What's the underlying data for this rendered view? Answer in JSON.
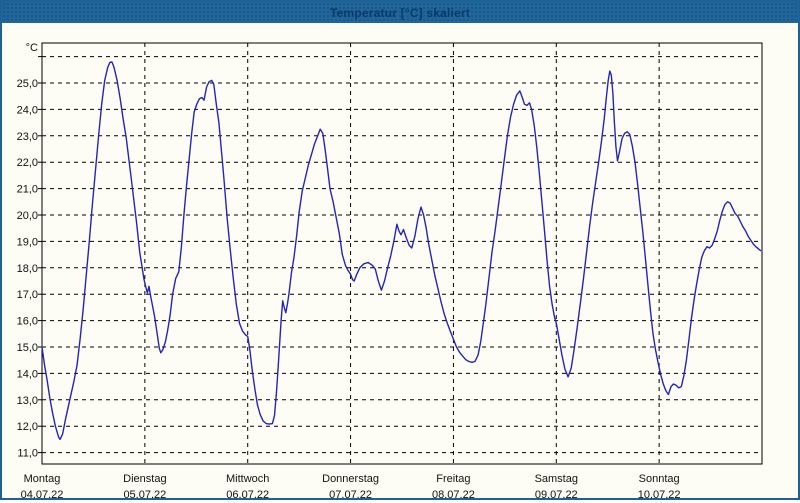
{
  "window": {
    "title": "Temperatur [°C] skaliert"
  },
  "chart_data": {
    "type": "line",
    "title": "Temperatur [°C] skaliert",
    "grid": "dashed",
    "legend_position": "none",
    "line_color": "#2424b8",
    "plot_bg_color": "#fdfdf6",
    "frame_color": "#000000",
    "y_axis": {
      "unit_label": "°C",
      "ylim": [
        10.6,
        26.5
      ],
      "gridline_step": 1.0,
      "gridlines": [
        11,
        12,
        13,
        14,
        15,
        16,
        17,
        18,
        19,
        20,
        21,
        22,
        23,
        24,
        25,
        26
      ],
      "ticks": [
        {
          "value": 25,
          "label": "25,0"
        },
        {
          "value": 24,
          "label": "24,0"
        },
        {
          "value": 23,
          "label": "23,0"
        },
        {
          "value": 22,
          "label": "22,0"
        },
        {
          "value": 21,
          "label": "21,0"
        },
        {
          "value": 20,
          "label": "20,0"
        },
        {
          "value": 19,
          "label": "19,0"
        },
        {
          "value": 18,
          "label": "18,0"
        },
        {
          "value": 17,
          "label": "17,0"
        },
        {
          "value": 16,
          "label": "16,0"
        },
        {
          "value": 15,
          "label": "15,0"
        },
        {
          "value": 14,
          "label": "14,0"
        },
        {
          "value": 13,
          "label": "13,0"
        },
        {
          "value": 12,
          "label": "12,0"
        },
        {
          "value": 11,
          "label": "11,0"
        }
      ]
    },
    "x_axis": {
      "unit": "days",
      "xlim_days": [
        0,
        7
      ],
      "tick_days": [
        {
          "name": "Montag",
          "date": "04.07.22"
        },
        {
          "name": "Dienstag",
          "date": "05.07.22"
        },
        {
          "name": "Mittwoch",
          "date": "06.07.22"
        },
        {
          "name": "Donnerstag",
          "date": "07.07.22"
        },
        {
          "name": "Freitag",
          "date": "08.07.22"
        },
        {
          "name": "Samstag",
          "date": "09.07.22"
        },
        {
          "name": "Sonntag",
          "date": "10.07.22"
        }
      ]
    },
    "series": [
      {
        "name": "Temperatur [°C]",
        "points": [
          [
            0.0,
            15.0
          ],
          [
            0.025,
            14.3
          ],
          [
            0.05,
            13.75
          ],
          [
            0.075,
            13.1
          ],
          [
            0.1,
            12.55
          ],
          [
            0.13,
            12.0
          ],
          [
            0.16,
            11.6
          ],
          [
            0.175,
            11.5
          ],
          [
            0.2,
            11.7
          ],
          [
            0.23,
            12.3
          ],
          [
            0.27,
            13.0
          ],
          [
            0.31,
            13.7
          ],
          [
            0.34,
            14.3
          ],
          [
            0.37,
            15.3
          ],
          [
            0.4,
            16.4
          ],
          [
            0.43,
            17.7
          ],
          [
            0.46,
            19.0
          ],
          [
            0.49,
            20.4
          ],
          [
            0.52,
            21.7
          ],
          [
            0.55,
            23.0
          ],
          [
            0.58,
            24.2
          ],
          [
            0.61,
            25.1
          ],
          [
            0.64,
            25.6
          ],
          [
            0.66,
            25.78
          ],
          [
            0.68,
            25.8
          ],
          [
            0.7,
            25.6
          ],
          [
            0.73,
            25.1
          ],
          [
            0.76,
            24.4
          ],
          [
            0.79,
            23.6
          ],
          [
            0.82,
            22.9
          ],
          [
            0.87,
            21.3
          ],
          [
            0.92,
            19.7
          ],
          [
            0.95,
            18.6
          ],
          [
            0.97,
            18.1
          ],
          [
            0.99,
            17.6
          ],
          [
            1.01,
            17.25
          ],
          [
            1.025,
            17.05
          ],
          [
            1.04,
            17.3
          ],
          [
            1.055,
            16.95
          ],
          [
            1.075,
            16.55
          ],
          [
            1.095,
            16.15
          ],
          [
            1.12,
            15.5
          ],
          [
            1.14,
            14.95
          ],
          [
            1.155,
            14.78
          ],
          [
            1.175,
            14.9
          ],
          [
            1.2,
            15.2
          ],
          [
            1.22,
            15.6
          ],
          [
            1.245,
            16.2
          ],
          [
            1.27,
            17.0
          ],
          [
            1.3,
            17.6
          ],
          [
            1.33,
            17.85
          ],
          [
            1.355,
            18.8
          ],
          [
            1.38,
            20.0
          ],
          [
            1.405,
            21.1
          ],
          [
            1.43,
            22.1
          ],
          [
            1.455,
            23.1
          ],
          [
            1.48,
            23.9
          ],
          [
            1.505,
            24.2
          ],
          [
            1.53,
            24.4
          ],
          [
            1.555,
            24.45
          ],
          [
            1.575,
            24.35
          ],
          [
            1.6,
            24.85
          ],
          [
            1.625,
            25.05
          ],
          [
            1.65,
            25.1
          ],
          [
            1.67,
            24.95
          ],
          [
            1.695,
            24.2
          ],
          [
            1.72,
            23.5
          ],
          [
            1.745,
            22.4
          ],
          [
            1.77,
            21.3
          ],
          [
            1.8,
            19.9
          ],
          [
            1.83,
            18.7
          ],
          [
            1.86,
            17.6
          ],
          [
            1.89,
            16.6
          ],
          [
            1.92,
            15.9
          ],
          [
            1.95,
            15.6
          ],
          [
            1.98,
            15.45
          ],
          [
            2.0,
            15.4
          ],
          [
            2.02,
            14.9
          ],
          [
            2.045,
            14.1
          ],
          [
            2.07,
            13.4
          ],
          [
            2.095,
            12.8
          ],
          [
            2.12,
            12.45
          ],
          [
            2.15,
            12.2
          ],
          [
            2.18,
            12.1
          ],
          [
            2.21,
            12.08
          ],
          [
            2.24,
            12.1
          ],
          [
            2.26,
            12.4
          ],
          [
            2.28,
            13.3
          ],
          [
            2.295,
            14.2
          ],
          [
            2.31,
            15.1
          ],
          [
            2.325,
            16.0
          ],
          [
            2.34,
            16.75
          ],
          [
            2.355,
            16.5
          ],
          [
            2.37,
            16.3
          ],
          [
            2.385,
            16.6
          ],
          [
            2.4,
            17.0
          ],
          [
            2.425,
            17.8
          ],
          [
            2.45,
            18.4
          ],
          [
            2.475,
            19.2
          ],
          [
            2.5,
            20.1
          ],
          [
            2.53,
            20.9
          ],
          [
            2.56,
            21.4
          ],
          [
            2.59,
            21.9
          ],
          [
            2.62,
            22.3
          ],
          [
            2.65,
            22.7
          ],
          [
            2.68,
            23.0
          ],
          [
            2.705,
            23.25
          ],
          [
            2.73,
            23.1
          ],
          [
            2.755,
            22.4
          ],
          [
            2.775,
            21.8
          ],
          [
            2.8,
            21.0
          ],
          [
            2.83,
            20.5
          ],
          [
            2.86,
            19.9
          ],
          [
            2.89,
            19.3
          ],
          [
            2.92,
            18.5
          ],
          [
            2.95,
            18.1
          ],
          [
            2.975,
            17.9
          ],
          [
            3.0,
            17.75
          ],
          [
            3.02,
            17.55
          ],
          [
            3.035,
            17.5
          ],
          [
            3.06,
            17.75
          ],
          [
            3.09,
            18.0
          ],
          [
            3.13,
            18.15
          ],
          [
            3.17,
            18.2
          ],
          [
            3.21,
            18.1
          ],
          [
            3.24,
            17.95
          ],
          [
            3.27,
            17.5
          ],
          [
            3.3,
            17.15
          ],
          [
            3.33,
            17.5
          ],
          [
            3.36,
            18.0
          ],
          [
            3.39,
            18.45
          ],
          [
            3.42,
            19.0
          ],
          [
            3.45,
            19.65
          ],
          [
            3.47,
            19.4
          ],
          [
            3.49,
            19.25
          ],
          [
            3.515,
            19.45
          ],
          [
            3.54,
            19.15
          ],
          [
            3.57,
            18.85
          ],
          [
            3.595,
            18.75
          ],
          [
            3.625,
            19.2
          ],
          [
            3.655,
            19.85
          ],
          [
            3.685,
            20.3
          ],
          [
            3.71,
            20.0
          ],
          [
            3.735,
            19.5
          ],
          [
            3.76,
            18.9
          ],
          [
            3.79,
            18.3
          ],
          [
            3.82,
            17.7
          ],
          [
            3.85,
            17.2
          ],
          [
            3.88,
            16.7
          ],
          [
            3.91,
            16.25
          ],
          [
            3.94,
            15.9
          ],
          [
            3.97,
            15.6
          ],
          [
            4.0,
            15.3
          ],
          [
            4.03,
            15.0
          ],
          [
            4.06,
            14.8
          ],
          [
            4.09,
            14.65
          ],
          [
            4.12,
            14.52
          ],
          [
            4.15,
            14.45
          ],
          [
            4.18,
            14.42
          ],
          [
            4.21,
            14.45
          ],
          [
            4.24,
            14.7
          ],
          [
            4.265,
            15.2
          ],
          [
            4.29,
            15.9
          ],
          [
            4.315,
            16.6
          ],
          [
            4.345,
            17.6
          ],
          [
            4.375,
            18.6
          ],
          [
            4.405,
            19.4
          ],
          [
            4.435,
            20.3
          ],
          [
            4.465,
            21.2
          ],
          [
            4.495,
            22.1
          ],
          [
            4.525,
            23.0
          ],
          [
            4.555,
            23.7
          ],
          [
            4.585,
            24.2
          ],
          [
            4.615,
            24.55
          ],
          [
            4.645,
            24.7
          ],
          [
            4.67,
            24.45
          ],
          [
            4.69,
            24.2
          ],
          [
            4.715,
            24.15
          ],
          [
            4.74,
            24.25
          ],
          [
            4.76,
            24.0
          ],
          [
            4.785,
            23.4
          ],
          [
            4.81,
            22.6
          ],
          [
            4.835,
            21.6
          ],
          [
            4.86,
            20.5
          ],
          [
            4.885,
            19.4
          ],
          [
            4.91,
            18.3
          ],
          [
            4.935,
            17.3
          ],
          [
            4.96,
            16.6
          ],
          [
            4.985,
            16.1
          ],
          [
            5.0,
            15.9
          ],
          [
            5.025,
            15.35
          ],
          [
            5.055,
            14.7
          ],
          [
            5.085,
            14.15
          ],
          [
            5.115,
            13.87
          ],
          [
            5.145,
            14.2
          ],
          [
            5.175,
            14.95
          ],
          [
            5.205,
            15.8
          ],
          [
            5.235,
            16.7
          ],
          [
            5.265,
            17.6
          ],
          [
            5.295,
            18.6
          ],
          [
            5.325,
            19.6
          ],
          [
            5.355,
            20.5
          ],
          [
            5.385,
            21.3
          ],
          [
            5.415,
            22.1
          ],
          [
            5.44,
            22.8
          ],
          [
            5.465,
            23.6
          ],
          [
            5.485,
            24.4
          ],
          [
            5.505,
            25.1
          ],
          [
            5.52,
            25.45
          ],
          [
            5.535,
            25.3
          ],
          [
            5.55,
            24.6
          ],
          [
            5.565,
            23.5
          ],
          [
            5.58,
            22.6
          ],
          [
            5.595,
            22.05
          ],
          [
            5.615,
            22.4
          ],
          [
            5.64,
            22.9
          ],
          [
            5.665,
            23.1
          ],
          [
            5.69,
            23.15
          ],
          [
            5.715,
            23.05
          ],
          [
            5.74,
            22.6
          ],
          [
            5.765,
            22.0
          ],
          [
            5.79,
            21.2
          ],
          [
            5.815,
            20.3
          ],
          [
            5.84,
            19.4
          ],
          [
            5.865,
            18.4
          ],
          [
            5.89,
            17.4
          ],
          [
            5.915,
            16.4
          ],
          [
            5.94,
            15.5
          ],
          [
            5.965,
            14.9
          ],
          [
            5.99,
            14.4
          ],
          [
            6.015,
            13.95
          ],
          [
            6.04,
            13.6
          ],
          [
            6.065,
            13.35
          ],
          [
            6.09,
            13.2
          ],
          [
            6.115,
            13.5
          ],
          [
            6.14,
            13.6
          ],
          [
            6.165,
            13.55
          ],
          [
            6.19,
            13.45
          ],
          [
            6.215,
            13.5
          ],
          [
            6.24,
            13.9
          ],
          [
            6.265,
            14.5
          ],
          [
            6.29,
            15.3
          ],
          [
            6.315,
            16.1
          ],
          [
            6.34,
            16.8
          ],
          [
            6.365,
            17.4
          ],
          [
            6.39,
            17.95
          ],
          [
            6.415,
            18.4
          ],
          [
            6.44,
            18.65
          ],
          [
            6.465,
            18.8
          ],
          [
            6.49,
            18.75
          ],
          [
            6.515,
            18.85
          ],
          [
            6.54,
            19.1
          ],
          [
            6.565,
            19.4
          ],
          [
            6.59,
            19.8
          ],
          [
            6.615,
            20.15
          ],
          [
            6.64,
            20.4
          ],
          [
            6.665,
            20.5
          ],
          [
            6.69,
            20.45
          ],
          [
            6.715,
            20.25
          ],
          [
            6.74,
            20.05
          ],
          [
            6.765,
            19.95
          ],
          [
            6.79,
            19.75
          ],
          [
            6.815,
            19.55
          ],
          [
            6.84,
            19.4
          ],
          [
            6.865,
            19.2
          ],
          [
            6.89,
            19.05
          ],
          [
            6.915,
            18.9
          ],
          [
            6.94,
            18.8
          ],
          [
            6.965,
            18.72
          ],
          [
            6.985,
            18.65
          ]
        ]
      }
    ]
  }
}
